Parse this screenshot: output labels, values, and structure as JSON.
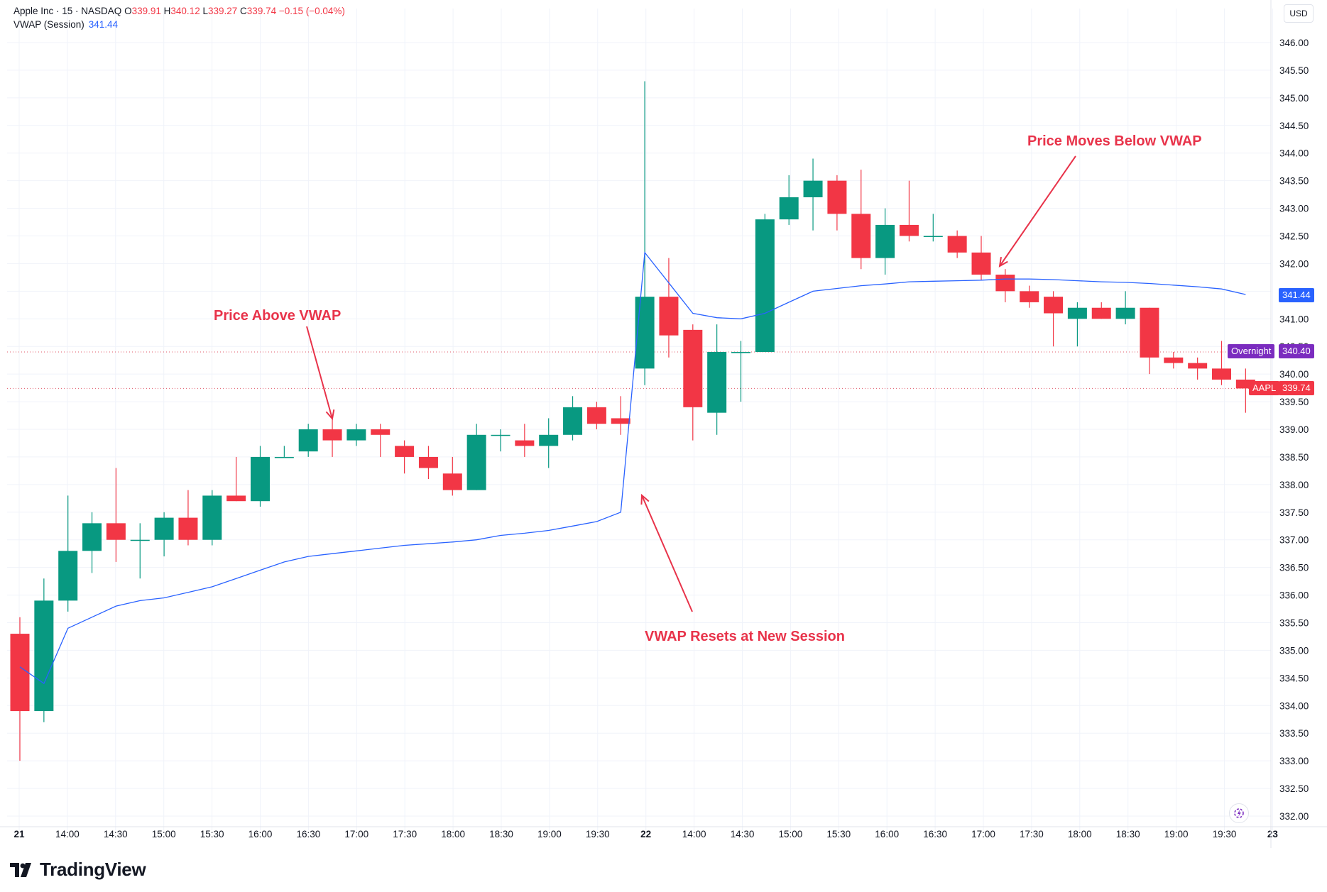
{
  "header": {
    "symbol": "Apple Inc · 15 · NASDAQ",
    "o_label": "O",
    "o_value": "339.91",
    "h_label": "H",
    "h_value": "340.12",
    "l_label": "L",
    "l_value": "339.27",
    "c_label": "C",
    "c_value": "339.74",
    "change": "−0.15 (−0.04%)",
    "indicator_name": "VWAP (Session)",
    "indicator_value": "341.44"
  },
  "currency": "USD",
  "brand": "TradingView",
  "annotations": {
    "above": "Price Above VWAP",
    "below": "Price Moves Below VWAP",
    "reset": "VWAP Resets at New Session"
  },
  "price_tags": {
    "vwap": "341.44",
    "overnight_label": "Overnight",
    "overnight_value": "340.40",
    "symbol_label": "AAPL",
    "symbol_value": "339.74"
  },
  "colors": {
    "up": "#089981",
    "down": "#f23645",
    "vwap": "#2962ff",
    "annotation": "#e8334a",
    "overnight": "#7b2cbf"
  },
  "chart_data": {
    "type": "candlestick",
    "ylim": [
      331.8,
      346.4
    ],
    "y_ticks": [
      "346.00",
      "345.50",
      "345.00",
      "344.50",
      "344.00",
      "343.50",
      "343.00",
      "342.50",
      "342.00",
      "341.50",
      "341.00",
      "340.50",
      "340.00",
      "339.50",
      "339.00",
      "338.50",
      "338.00",
      "337.50",
      "337.00",
      "336.50",
      "336.00",
      "335.50",
      "335.00",
      "334.50",
      "334.00",
      "333.50",
      "333.00",
      "332.50",
      "332.00"
    ],
    "x_ticks": [
      "21",
      "14:00",
      "14:30",
      "15:00",
      "15:30",
      "16:00",
      "16:30",
      "17:00",
      "17:30",
      "18:00",
      "18:30",
      "19:00",
      "19:30",
      "22",
      "14:00",
      "14:30",
      "15:00",
      "15:30",
      "16:00",
      "16:30",
      "17:00",
      "17:30",
      "18:00",
      "18:30",
      "19:00",
      "19:30",
      "23"
    ],
    "candles": [
      {
        "o": 335.3,
        "h": 335.6,
        "l": 333.0,
        "c": 333.9
      },
      {
        "o": 333.9,
        "h": 336.3,
        "l": 333.7,
        "c": 335.9
      },
      {
        "o": 335.9,
        "h": 337.8,
        "l": 335.7,
        "c": 336.8
      },
      {
        "o": 336.8,
        "h": 337.5,
        "l": 336.4,
        "c": 337.3
      },
      {
        "o": 337.3,
        "h": 338.3,
        "l": 336.6,
        "c": 337.0
      },
      {
        "o": 337.0,
        "h": 337.3,
        "l": 336.3,
        "c": 337.0
      },
      {
        "o": 337.0,
        "h": 337.5,
        "l": 336.7,
        "c": 337.4
      },
      {
        "o": 337.4,
        "h": 337.9,
        "l": 336.9,
        "c": 337.0
      },
      {
        "o": 337.0,
        "h": 337.9,
        "l": 336.9,
        "c": 337.8
      },
      {
        "o": 337.8,
        "h": 338.5,
        "l": 337.7,
        "c": 337.7
      },
      {
        "o": 337.7,
        "h": 338.7,
        "l": 337.6,
        "c": 338.5
      },
      {
        "o": 338.5,
        "h": 338.7,
        "l": 338.5,
        "c": 338.5
      },
      {
        "o": 338.6,
        "h": 339.1,
        "l": 338.5,
        "c": 339.0
      },
      {
        "o": 339.0,
        "h": 339.2,
        "l": 338.5,
        "c": 338.8
      },
      {
        "o": 338.8,
        "h": 339.1,
        "l": 338.7,
        "c": 339.0
      },
      {
        "o": 339.0,
        "h": 339.1,
        "l": 338.5,
        "c": 338.9
      },
      {
        "o": 338.7,
        "h": 338.8,
        "l": 338.2,
        "c": 338.5
      },
      {
        "o": 338.5,
        "h": 338.7,
        "l": 338.1,
        "c": 338.3
      },
      {
        "o": 338.2,
        "h": 338.5,
        "l": 337.8,
        "c": 337.9
      },
      {
        "o": 337.9,
        "h": 339.1,
        "l": 337.9,
        "c": 338.9
      },
      {
        "o": 338.9,
        "h": 339.0,
        "l": 338.6,
        "c": 338.9
      },
      {
        "o": 338.8,
        "h": 339.1,
        "l": 338.5,
        "c": 338.7
      },
      {
        "o": 338.7,
        "h": 339.2,
        "l": 338.3,
        "c": 338.9
      },
      {
        "o": 338.9,
        "h": 339.6,
        "l": 338.8,
        "c": 339.4
      },
      {
        "o": 339.4,
        "h": 339.5,
        "l": 339.0,
        "c": 339.1
      },
      {
        "o": 339.2,
        "h": 339.6,
        "l": 338.9,
        "c": 339.1
      },
      {
        "o": 340.1,
        "h": 345.3,
        "l": 339.8,
        "c": 341.4
      },
      {
        "o": 341.4,
        "h": 342.1,
        "l": 340.3,
        "c": 340.7
      },
      {
        "o": 340.8,
        "h": 340.9,
        "l": 338.8,
        "c": 339.4
      },
      {
        "o": 339.3,
        "h": 340.9,
        "l": 338.9,
        "c": 340.4
      },
      {
        "o": 340.4,
        "h": 340.6,
        "l": 339.5,
        "c": 340.4
      },
      {
        "o": 340.4,
        "h": 342.9,
        "l": 340.4,
        "c": 342.8
      },
      {
        "o": 342.8,
        "h": 343.6,
        "l": 342.7,
        "c": 343.2
      },
      {
        "o": 343.2,
        "h": 343.9,
        "l": 342.6,
        "c": 343.5
      },
      {
        "o": 343.5,
        "h": 343.6,
        "l": 342.6,
        "c": 342.9
      },
      {
        "o": 342.9,
        "h": 343.7,
        "l": 341.9,
        "c": 342.1
      },
      {
        "o": 342.1,
        "h": 343.0,
        "l": 341.8,
        "c": 342.7
      },
      {
        "o": 342.7,
        "h": 343.5,
        "l": 342.4,
        "c": 342.5
      },
      {
        "o": 342.5,
        "h": 342.9,
        "l": 342.4,
        "c": 342.5
      },
      {
        "o": 342.5,
        "h": 342.6,
        "l": 342.1,
        "c": 342.2
      },
      {
        "o": 342.2,
        "h": 342.5,
        "l": 341.7,
        "c": 341.8
      },
      {
        "o": 341.8,
        "h": 341.9,
        "l": 341.3,
        "c": 341.5
      },
      {
        "o": 341.5,
        "h": 341.6,
        "l": 341.2,
        "c": 341.3
      },
      {
        "o": 341.4,
        "h": 341.5,
        "l": 340.5,
        "c": 341.1
      },
      {
        "o": 341.0,
        "h": 341.3,
        "l": 340.5,
        "c": 341.2
      },
      {
        "o": 341.2,
        "h": 341.3,
        "l": 341.0,
        "c": 341.0
      },
      {
        "o": 341.0,
        "h": 341.5,
        "l": 340.9,
        "c": 341.2
      },
      {
        "o": 341.2,
        "h": 341.2,
        "l": 340.0,
        "c": 340.3
      },
      {
        "o": 340.3,
        "h": 340.4,
        "l": 340.1,
        "c": 340.2
      },
      {
        "o": 340.2,
        "h": 340.3,
        "l": 339.9,
        "c": 340.1
      },
      {
        "o": 340.1,
        "h": 340.6,
        "l": 339.8,
        "c": 339.9
      },
      {
        "o": 339.9,
        "h": 340.1,
        "l": 339.3,
        "c": 339.74
      }
    ],
    "vwap": [
      334.7,
      334.4,
      335.4,
      335.6,
      335.8,
      335.9,
      335.95,
      336.05,
      336.15,
      336.3,
      336.45,
      336.6,
      336.7,
      336.75,
      336.8,
      336.85,
      336.9,
      336.93,
      336.96,
      337.0,
      337.08,
      337.12,
      337.17,
      337.25,
      337.33,
      337.5,
      342.2,
      341.65,
      341.1,
      341.02,
      341.0,
      341.1,
      341.3,
      341.5,
      341.55,
      341.6,
      341.63,
      341.67,
      341.68,
      341.69,
      341.7,
      341.72,
      341.72,
      341.71,
      341.69,
      341.67,
      341.66,
      341.64,
      341.61,
      341.58,
      341.54,
      341.44
    ],
    "reference_lines": {
      "overnight": 340.4,
      "last": 339.74
    }
  }
}
